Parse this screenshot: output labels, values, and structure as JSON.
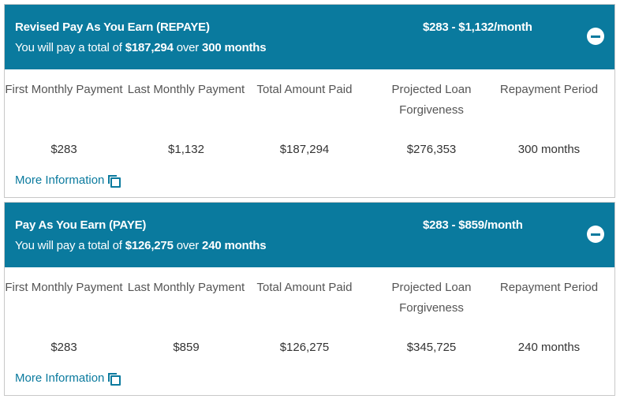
{
  "plans": [
    {
      "name": "Revised Pay As You Earn (REPAYE)",
      "summary_prefix": "You will pay a total of",
      "total": "$187,294",
      "summary_mid": "over",
      "months": "300 months",
      "range": "$283 - $1,132/month",
      "columns": [
        {
          "label": "First Monthly Payment",
          "value": "$283"
        },
        {
          "label": "Last Monthly Payment",
          "value": "$1,132"
        },
        {
          "label": "Total Amount Paid",
          "value": "$187,294"
        },
        {
          "label": "Projected Loan Forgiveness",
          "value": "$276,353"
        },
        {
          "label": "Repayment Period",
          "value": "300 months"
        }
      ],
      "more_info": "More Information"
    },
    {
      "name": "Pay As You Earn (PAYE)",
      "summary_prefix": "You will pay a total of",
      "total": "$126,275",
      "summary_mid": "over",
      "months": "240 months",
      "range": "$283 - $859/month",
      "columns": [
        {
          "label": "First Monthly Payment",
          "value": "$283"
        },
        {
          "label": "Last Monthly Payment",
          "value": "$859"
        },
        {
          "label": "Total Amount Paid",
          "value": "$126,275"
        },
        {
          "label": "Projected Loan Forgiveness",
          "value": "$345,725"
        },
        {
          "label": "Repayment Period",
          "value": "240 months"
        }
      ],
      "more_info": "More Information"
    }
  ],
  "colors": {
    "header_bg": "#0a7a9e",
    "link": "#0a7a9e"
  },
  "icons": {
    "collapse": "minus-circle-icon",
    "more_info": "copy-icon"
  }
}
